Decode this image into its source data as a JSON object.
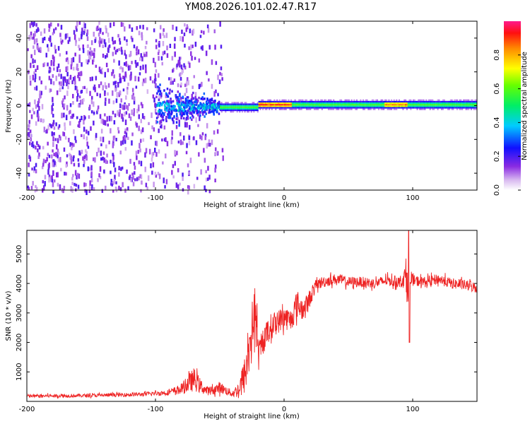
{
  "title": "YM08.2026.101.02.47.R17",
  "chart_data": [
    {
      "type": "heatmap",
      "xlabel": "Height of straight line (km)",
      "ylabel": "Frequency (Hz)",
      "xlim": [
        -200,
        150
      ],
      "ylim": [
        -50,
        50
      ],
      "x_ticks": [
        "-200",
        "-100",
        "0",
        "100"
      ],
      "x_tick_values": [
        -200,
        -100,
        0,
        100
      ],
      "y_ticks": [
        "-40",
        "-20",
        "0",
        "20",
        "40"
      ],
      "y_tick_values": [
        -40,
        -20,
        0,
        20,
        40
      ],
      "colorbar": {
        "label": "Normalized spectral amplitude",
        "range": [
          0,
          1
        ],
        "ticks": [
          "0.0",
          "0.2",
          "0.4",
          "0.6",
          "0.8"
        ],
        "tick_values": [
          0.0,
          0.2,
          0.4,
          0.6,
          0.8
        ]
      },
      "features": [
        {
          "name": "broadband noise",
          "x_range": [
            -200,
            -48
          ],
          "amplitude": 0.15
        },
        {
          "name": "spread signal",
          "x_range": [
            -100,
            -50
          ],
          "center_hz": 0,
          "spread_hz": 15,
          "amplitude": 0.3
        },
        {
          "name": "narrow band signal",
          "x_range": [
            -50,
            150
          ],
          "center_hz": 1,
          "width_hz": 3,
          "amplitude": 0.55
        },
        {
          "name": "peak amplitude",
          "x_range": [
            -20,
            5
          ],
          "center_hz": 1,
          "amplitude": 0.95
        },
        {
          "name": "peak amplitude",
          "x_range": [
            78,
            95
          ],
          "center_hz": 1,
          "amplitude": 0.9
        }
      ]
    },
    {
      "type": "line",
      "xlabel": "Height of straight line (km)",
      "ylabel": "SNR (10 * v/v)",
      "xlim": [
        -200,
        150
      ],
      "ylim": [
        0,
        5800
      ],
      "x_ticks": [
        "-200",
        "-100",
        "0",
        "100"
      ],
      "x_tick_values": [
        -200,
        -100,
        0,
        100
      ],
      "y_ticks": [
        "1000",
        "2000",
        "3000",
        "4000",
        "5000"
      ],
      "y_tick_values": [
        1000,
        2000,
        3000,
        4000,
        5000
      ],
      "series": [
        {
          "name": "SNR",
          "color": "#ee2222",
          "x": [
            -200,
            -150,
            -110,
            -90,
            -80,
            -75,
            -70,
            -65,
            -60,
            -55,
            -50,
            -45,
            -40,
            -35,
            -30,
            -25,
            -22,
            -20,
            -15,
            -10,
            -5,
            0,
            5,
            10,
            15,
            20,
            25,
            30,
            40,
            50,
            60,
            70,
            80,
            90,
            95,
            97,
            100,
            110,
            120,
            130,
            140,
            150
          ],
          "values": [
            180,
            200,
            240,
            300,
            420,
            580,
            750,
            520,
            350,
            380,
            480,
            360,
            260,
            420,
            950,
            2500,
            3100,
            1500,
            2200,
            2550,
            2700,
            2850,
            2750,
            3300,
            3100,
            3500,
            3950,
            4050,
            4150,
            4050,
            4050,
            4000,
            4100,
            4050,
            4250,
            3900,
            4100,
            4050,
            4150,
            4000,
            3950,
            3850
          ],
          "noise": [
            60,
            60,
            70,
            90,
            180,
            300,
            400,
            250,
            150,
            150,
            200,
            150,
            120,
            300,
            700,
            900,
            900,
            500,
            400,
            450,
            400,
            400,
            400,
            500,
            350,
            300,
            200,
            200,
            180,
            180,
            180,
            180,
            180,
            200,
            400,
            800,
            180,
            180,
            180,
            180,
            180,
            180
          ]
        }
      ]
    }
  ]
}
